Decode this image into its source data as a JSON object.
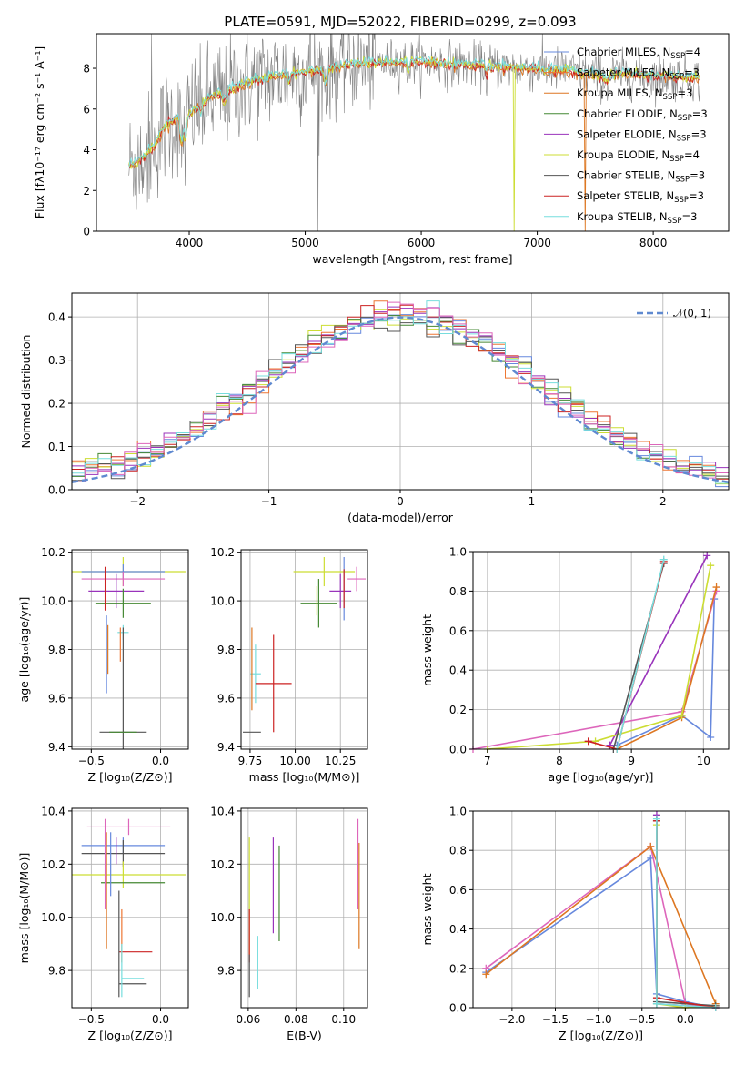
{
  "colors": {
    "Chabrier MILES": "#6688dd",
    "Salpeter MILES": "#ee7733",
    "Kroupa MILES": "#dd7722",
    "Chabrier ELODIE": "#448833",
    "Salpeter ELODIE": "#9933bb",
    "Kroupa ELODIE": "#ccdd33",
    "Chabrier STELIB": "#555555",
    "Salpeter STELIB": "#cc2222",
    "Kroupa STELIB": "#77dddd",
    "salpeter_miles_alt": "#dd66bb",
    "normal_curve": "#5f89d0",
    "observed": "#808080"
  },
  "chart_data": [
    {
      "id": "spectrum",
      "type": "line",
      "title": "PLATE=0591, MJD=52022, FIBERID=0299, z=0.093",
      "xlabel": "wavelength [Angstrom, rest frame]",
      "ylabel": "Flux [fλ10⁻¹⁷ erg cm⁻² s⁻¹ A⁻¹]",
      "xlim": [
        3200,
        8650
      ],
      "ylim": [
        0,
        9.7
      ],
      "xticks": [
        4000,
        5000,
        6000,
        7000,
        8000
      ],
      "yticks": [
        0,
        2,
        4,
        6,
        8
      ],
      "legend_position": "upper-right",
      "continuum": [
        [
          3480,
          3.2
        ],
        [
          3600,
          3.6
        ],
        [
          3700,
          4.2
        ],
        [
          3800,
          5.3
        ],
        [
          3900,
          5.6
        ],
        [
          4000,
          5.8
        ],
        [
          4200,
          6.6
        ],
        [
          4500,
          7.3
        ],
        [
          4800,
          7.7
        ],
        [
          5100,
          7.9
        ],
        [
          5400,
          8.2
        ],
        [
          5700,
          8.3
        ],
        [
          6000,
          8.35
        ],
        [
          6300,
          8.2
        ],
        [
          6600,
          8.1
        ],
        [
          6900,
          8.0
        ],
        [
          7200,
          7.9
        ],
        [
          7500,
          7.7
        ],
        [
          7800,
          7.7
        ],
        [
          8100,
          7.6
        ],
        [
          8400,
          7.5
        ]
      ],
      "legend": [
        {
          "name": "Chabrier MILES, N",
          "sub": "SSP",
          "tail": "=4",
          "color_key": "Chabrier MILES"
        },
        {
          "name": "Salpeter MILES, N",
          "sub": "SSP",
          "tail": "=3",
          "color_key": "Salpeter MILES"
        },
        {
          "name": "Kroupa MILES, N",
          "sub": "SSP",
          "tail": "=3",
          "color_key": "Kroupa MILES"
        },
        {
          "name": "Chabrier ELODIE, N",
          "sub": "SSP",
          "tail": "=3",
          "color_key": "Chabrier ELODIE"
        },
        {
          "name": "Salpeter ELODIE, N",
          "sub": "SSP",
          "tail": "=3",
          "color_key": "Salpeter ELODIE"
        },
        {
          "name": "Kroupa ELODIE, N",
          "sub": "SSP",
          "tail": "=4",
          "color_key": "Kroupa ELODIE"
        },
        {
          "name": "Chabrier STELIB, N",
          "sub": "SSP",
          "tail": "=3",
          "color_key": "Chabrier STELIB"
        },
        {
          "name": "Salpeter STELIB, N",
          "sub": "SSP",
          "tail": "=3",
          "color_key": "Salpeter STELIB"
        },
        {
          "name": "Kroupa STELIB, N",
          "sub": "SSP",
          "tail": "=3",
          "color_key": "Kroupa STELIB"
        }
      ]
    },
    {
      "id": "residuals",
      "type": "step",
      "xlabel": "(data-model)/error",
      "ylabel": "Normed distribution",
      "xlim": [
        -2.5,
        2.5
      ],
      "ylim": [
        0,
        0.455
      ],
      "xticks": [
        -2,
        -1,
        0,
        1,
        2
      ],
      "yticks": [
        0.0,
        0.1,
        0.2,
        0.3,
        0.4
      ],
      "legend_label": "𝒩(0, 1)",
      "bin_width": 0.1
    },
    {
      "id": "age_vs_Z",
      "type": "errorbar",
      "xlabel": "Z [log₁₀(Z/Z⊙)]",
      "ylabel": "age  [log₁₀(age/yr)]",
      "xlim": [
        -0.64,
        0.2
      ],
      "ylim": [
        9.39,
        10.21
      ],
      "xticks": [
        -0.5,
        0.0
      ],
      "yticks": [
        9.4,
        9.6,
        9.8,
        10.0,
        10.2
      ],
      "points": [
        {
          "c": "Kroupa ELODIE",
          "x": -0.27,
          "xe": 0.45,
          "y": 10.12,
          "ye": 0.06
        },
        {
          "c": "Chabrier MILES",
          "x": -0.27,
          "xe": 0.3,
          "y": 10.12,
          "ye": 0.03
        },
        {
          "c": "salpeter_miles_alt",
          "x": -0.27,
          "xe": 0.3,
          "y": 10.09,
          "ye": 0.03
        },
        {
          "c": "Salpeter ELODIE",
          "x": -0.32,
          "xe": 0.2,
          "y": 10.04,
          "ye": 0.07
        },
        {
          "c": "Chabrier ELODIE",
          "x": -0.27,
          "xe": 0.2,
          "y": 9.99,
          "ye": 0.06
        },
        {
          "c": "Kroupa STELIB",
          "x": -0.27,
          "xe": 0.04,
          "y": 9.87,
          "ye": 0.03
        },
        {
          "c": "Chabrier STELIB",
          "x": -0.27,
          "xe": 0.17,
          "y": 9.46,
          "ye": 0.43
        },
        {
          "c": "Chabrier ELODIE",
          "x": -0.27,
          "xe": 0.1,
          "y": 9.46,
          "ye": 0.0
        },
        {
          "c": "Salpeter STELIB",
          "x": -0.4,
          "xe": 0.0,
          "y": 10.05,
          "ye": 0.09
        },
        {
          "c": "Kroupa MILES",
          "x": -0.38,
          "xe": 0.0,
          "y": 9.8,
          "ye": 0.1
        },
        {
          "c": "Chabrier MILES",
          "x": -0.39,
          "xe": 0.0,
          "y": 9.78,
          "ye": 0.16
        },
        {
          "c": "Salpeter MILES",
          "x": -0.29,
          "xe": 0.0,
          "y": 9.82,
          "ye": 0.07
        }
      ]
    },
    {
      "id": "age_vs_mass",
      "type": "errorbar",
      "xlabel": "mass [log₁₀(M/M⊙)]",
      "ylabel": "",
      "xlim": [
        9.7,
        10.4
      ],
      "ylim": [
        9.39,
        10.21
      ],
      "xticks": [
        9.75,
        10.0,
        10.25
      ],
      "yticks": [
        9.4,
        9.6,
        9.8,
        10.0,
        10.2
      ],
      "points": [
        {
          "c": "Kroupa ELODIE",
          "x": 10.16,
          "xe": 0.17,
          "y": 10.12,
          "ye": 0.06
        },
        {
          "c": "Chabrier MILES",
          "x": 10.27,
          "xe": 0.0,
          "y": 10.05,
          "ye": 0.13
        },
        {
          "c": "salpeter_miles_alt",
          "x": 10.34,
          "xe": 0.05,
          "y": 10.09,
          "ye": 0.05
        },
        {
          "c": "Salpeter ELODIE",
          "x": 10.25,
          "xe": 0.06,
          "y": 10.04,
          "ye": 0.07
        },
        {
          "c": "Chabrier ELODIE",
          "x": 10.13,
          "xe": 0.1,
          "y": 9.99,
          "ye": 0.1
        },
        {
          "c": "Kroupa STELIB",
          "x": 9.78,
          "xe": 0.03,
          "y": 9.7,
          "ye": 0.12
        },
        {
          "c": "Chabrier STELIB",
          "x": 9.76,
          "xe": 0.05,
          "y": 9.46,
          "ye": 0.0
        },
        {
          "c": "Salpeter STELIB",
          "x": 9.88,
          "xe": 0.1,
          "y": 9.66,
          "ye": 0.2
        },
        {
          "c": "Kroupa MILES",
          "x": 9.76,
          "xe": 0.0,
          "y": 9.72,
          "ye": 0.17
        },
        {
          "c": "Salpeter STELIB",
          "x": 10.27,
          "xe": 0.0,
          "y": 10.05,
          "ye": 0.08
        },
        {
          "c": "Kroupa ELODIE",
          "x": 10.12,
          "xe": 0.0,
          "y": 10.0,
          "ye": 0.06
        }
      ]
    },
    {
      "id": "mass_weight_vs_age",
      "type": "line",
      "xlabel": "age  [log₁₀(age/yr)]",
      "ylabel": "mass weight",
      "xlim": [
        6.8,
        10.35
      ],
      "ylim": [
        0,
        1.0
      ],
      "xticks": [
        7,
        8,
        9,
        10
      ],
      "yticks": [
        0.0,
        0.2,
        0.4,
        0.6,
        0.8,
        1.0
      ],
      "series": [
        {
          "c": "Chabrier MILES",
          "x": [
            8.8,
            9.7,
            10.1,
            10.15
          ],
          "y": [
            0.02,
            0.17,
            0.06,
            0.76
          ]
        },
        {
          "c": "salpeter_miles_alt",
          "x": [
            6.8,
            9.7,
            10.18
          ],
          "y": [
            0.0,
            0.19,
            0.8
          ]
        },
        {
          "c": "Kroupa MILES",
          "x": [
            8.8,
            9.7,
            10.18
          ],
          "y": [
            0.0,
            0.16,
            0.82
          ]
        },
        {
          "c": "Salpeter ELODIE",
          "x": [
            8.7,
            10.05
          ],
          "y": [
            0.02,
            0.98
          ]
        },
        {
          "c": "Kroupa ELODIE",
          "x": [
            7.0,
            8.5,
            9.7,
            10.1
          ],
          "y": [
            0.0,
            0.04,
            0.17,
            0.93
          ]
        },
        {
          "c": "Chabrier STELIB",
          "x": [
            8.75,
            9.45
          ],
          "y": [
            0.0,
            0.94
          ]
        },
        {
          "c": "Salpeter STELIB",
          "x": [
            8.4,
            8.8,
            9.45
          ],
          "y": [
            0.04,
            0.0,
            0.95
          ]
        },
        {
          "c": "Kroupa STELIB",
          "x": [
            8.8,
            9.45
          ],
          "y": [
            0.0,
            0.96
          ]
        }
      ]
    },
    {
      "id": "mass_vs_Z",
      "type": "errorbar",
      "xlabel": "Z [log₁₀(Z/Z⊙)]",
      "ylabel": "mass [log₁₀(M/M⊙)]",
      "xlim": [
        -0.64,
        0.2
      ],
      "ylim": [
        9.66,
        10.41
      ],
      "xticks": [
        -0.5,
        0.0
      ],
      "yticks": [
        9.8,
        10.0,
        10.2,
        10.4
      ],
      "points": [
        {
          "c": "salpeter_miles_alt",
          "x": -0.23,
          "xe": 0.3,
          "y": 10.34,
          "ye": 0.03
        },
        {
          "c": "Chabrier MILES",
          "x": -0.27,
          "xe": 0.3,
          "y": 10.27,
          "ye": 0.03
        },
        {
          "c": "Chabrier STELIB",
          "x": -0.27,
          "xe": 0.3,
          "y": 10.24,
          "ye": 0.05
        },
        {
          "c": "Salpeter ELODIE",
          "x": -0.32,
          "xe": 0.0,
          "y": 10.25,
          "ye": 0.05
        },
        {
          "c": "Kroupa ELODIE",
          "x": -0.27,
          "xe": 0.45,
          "y": 10.16,
          "ye": 0.05
        },
        {
          "c": "Chabrier ELODIE",
          "x": -0.2,
          "xe": 0.23,
          "y": 10.13,
          "ye": 0.0
        },
        {
          "c": "Salpeter STELIB",
          "x": -0.18,
          "xe": 0.12,
          "y": 9.87,
          "ye": 0.0
        },
        {
          "c": "Kroupa STELIB",
          "x": -0.2,
          "xe": 0.08,
          "y": 9.77,
          "ye": 0.0
        },
        {
          "c": "Chabrier STELIB",
          "x": -0.2,
          "xe": 0.1,
          "y": 9.75,
          "ye": 0.0
        },
        {
          "c": "Kroupa MILES",
          "x": -0.39,
          "xe": 0.0,
          "y": 10.1,
          "ye": 0.22
        },
        {
          "c": "salpeter_miles_alt",
          "x": -0.4,
          "xe": 0.0,
          "y": 10.2,
          "ye": 0.17
        },
        {
          "c": "Chabrier MILES",
          "x": -0.36,
          "xe": 0.0,
          "y": 10.2,
          "ye": 0.12
        },
        {
          "c": "Salpeter MILES",
          "x": -0.28,
          "xe": 0.0,
          "y": 9.93,
          "ye": 0.1
        },
        {
          "c": "Kroupa STELIB",
          "x": -0.28,
          "xe": 0.0,
          "y": 9.8,
          "ye": 0.1
        },
        {
          "c": "Chabrier STELIB",
          "x": -0.3,
          "xe": 0.0,
          "y": 9.9,
          "ye": 0.2
        }
      ]
    },
    {
      "id": "mass_vs_EBV",
      "type": "errorbar",
      "xlabel": "E(B-V)",
      "ylabel": "",
      "xlim": [
        0.057,
        0.11
      ],
      "ylim": [
        9.66,
        10.41
      ],
      "xticks": [
        0.06,
        0.08,
        0.1
      ],
      "yticks": [
        9.8,
        10.0,
        10.2,
        10.4
      ],
      "points": [
        {
          "c": "Kroupa ELODIE",
          "x": 0.0605,
          "xe": 0.0,
          "y": 10.08,
          "ye": 0.22
        },
        {
          "c": "Salpeter STELIB",
          "x": 0.0605,
          "xe": 0.0,
          "y": 9.93,
          "ye": 0.1
        },
        {
          "c": "Chabrier STELIB",
          "x": 0.0605,
          "xe": 0.0,
          "y": 9.78,
          "ye": 0.08
        },
        {
          "c": "Kroupa STELIB",
          "x": 0.064,
          "xe": 0.0,
          "y": 9.83,
          "ye": 0.1
        },
        {
          "c": "Salpeter ELODIE",
          "x": 0.0705,
          "xe": 0.0,
          "y": 10.12,
          "ye": 0.18
        },
        {
          "c": "Chabrier ELODIE",
          "x": 0.073,
          "xe": 0.0,
          "y": 10.09,
          "ye": 0.18
        },
        {
          "c": "salpeter_miles_alt",
          "x": 0.106,
          "xe": 0.0,
          "y": 10.2,
          "ye": 0.17
        },
        {
          "c": "Kroupa MILES",
          "x": 0.1065,
          "xe": 0.0,
          "y": 10.08,
          "ye": 0.2
        }
      ]
    },
    {
      "id": "mass_weight_vs_Z",
      "type": "line",
      "xlabel": "Z [log₁₀(Z/Z⊙)]",
      "ylabel": "mass weight",
      "xlim": [
        -2.45,
        0.5
      ],
      "ylim": [
        0,
        1.0
      ],
      "xticks": [
        -2.0,
        -1.5,
        -1.0,
        -0.5,
        0.0
      ],
      "yticks": [
        0.0,
        0.2,
        0.4,
        0.6,
        0.8,
        1.0
      ],
      "series": [
        {
          "c": "Chabrier MILES",
          "x": [
            -2.3,
            -0.4,
            -0.33,
            0.0,
            0.35
          ],
          "y": [
            0.18,
            0.76,
            0.07,
            0.03,
            0.0
          ]
        },
        {
          "c": "salpeter_miles_alt",
          "x": [
            -2.3,
            -0.4,
            -0.0,
            0.35
          ],
          "y": [
            0.2,
            0.82,
            0.02,
            0.0
          ]
        },
        {
          "c": "Kroupa MILES",
          "x": [
            -2.3,
            -0.4,
            0.35
          ],
          "y": [
            0.17,
            0.82,
            0.02
          ]
        },
        {
          "c": "Salpeter ELODIE",
          "x": [
            -0.33,
            -0.33,
            0.35
          ],
          "y": [
            0.98,
            0.02,
            0.0
          ]
        },
        {
          "c": "Kroupa ELODIE",
          "x": [
            -0.33,
            -0.33,
            0.0,
            0.35
          ],
          "y": [
            0.93,
            0.02,
            0.0,
            0.01
          ]
        },
        {
          "c": "Chabrier STELIB",
          "x": [
            -0.33,
            -0.33,
            0.35
          ],
          "y": [
            0.95,
            0.03,
            0.01
          ]
        },
        {
          "c": "Salpeter STELIB",
          "x": [
            -0.33,
            -0.33,
            0.35
          ],
          "y": [
            0.95,
            0.05,
            0.0
          ]
        },
        {
          "c": "Kroupa STELIB",
          "x": [
            -0.33,
            -0.33,
            0.35
          ],
          "y": [
            0.96,
            0.02,
            0.0
          ]
        }
      ]
    }
  ]
}
